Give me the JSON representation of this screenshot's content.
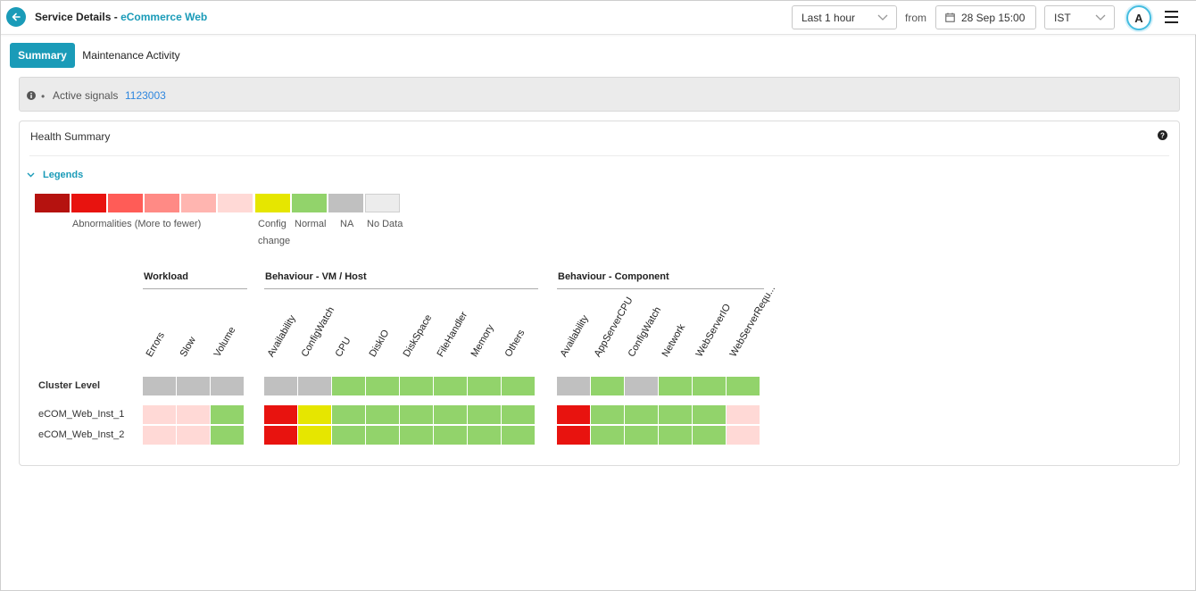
{
  "header": {
    "title_prefix": "Service Details - ",
    "service_name": "eCommerce Web",
    "time_range": "Last 1 hour",
    "from_label": "from",
    "from_date": "28 Sep 15:00",
    "timezone": "IST",
    "user_initial": "A"
  },
  "tabs": [
    {
      "label": "Summary",
      "active": true
    },
    {
      "label": "Maintenance Activity",
      "active": false
    }
  ],
  "signals": {
    "label": "Active signals",
    "value": "1123003"
  },
  "health": {
    "title": "Health Summary",
    "legends_label": "Legends",
    "legend": {
      "abnormality_colors": [
        "#b5120f",
        "#e8130f",
        "#ff5c57",
        "#ff8a85",
        "#ffb5b0",
        "#ffd9d6"
      ],
      "abnormality_label": "Abnormalities (More to fewer)",
      "config": {
        "color": "#e6e600",
        "label_line1": "Config",
        "label_line2": "change"
      },
      "normal": {
        "color": "#92d36b",
        "label": "Normal"
      },
      "na": {
        "color": "#c0c0c0",
        "label": "NA"
      },
      "nodata": {
        "color": "#ececec",
        "label": "No Data"
      }
    },
    "groups": [
      {
        "title": "Workload",
        "columns": [
          "Errors",
          "Slow",
          "Volume"
        ]
      },
      {
        "title": "Behaviour - VM / Host",
        "columns": [
          "Availability",
          "ConfigWatch",
          "CPU",
          "DiskIO",
          "DiskSpace",
          "FileHandler",
          "Memory",
          "Others"
        ]
      },
      {
        "title": "Behaviour - Component",
        "columns": [
          "Availability",
          "AppServerCPU",
          "ConfigWatch",
          "Network",
          "WebServerIO",
          "WebServerRequ..."
        ]
      }
    ],
    "rows": [
      {
        "label": "Cluster Level",
        "bold": true,
        "cells": [
          [
            "na",
            "na",
            "na"
          ],
          [
            "na",
            "na",
            "normal",
            "normal",
            "normal",
            "normal",
            "normal",
            "normal"
          ],
          [
            "na",
            "normal",
            "na",
            "normal",
            "normal",
            "normal"
          ]
        ]
      },
      {
        "label": "eCOM_Web_Inst_1",
        "bold": false,
        "cells": [
          [
            "abn6",
            "abn6",
            "normal"
          ],
          [
            "abn2",
            "config",
            "normal",
            "normal",
            "normal",
            "normal",
            "normal",
            "normal"
          ],
          [
            "abn2",
            "normal",
            "normal",
            "normal",
            "normal",
            "abn6"
          ]
        ]
      },
      {
        "label": "eCOM_Web_Inst_2",
        "bold": false,
        "cells": [
          [
            "abn6",
            "abn6",
            "normal"
          ],
          [
            "abn2",
            "config",
            "normal",
            "normal",
            "normal",
            "normal",
            "normal",
            "normal"
          ],
          [
            "abn2",
            "normal",
            "normal",
            "normal",
            "normal",
            "abn6"
          ]
        ]
      }
    ],
    "status_colors": {
      "abn1": "#b5120f",
      "abn2": "#e8130f",
      "abn3": "#ff5c57",
      "abn4": "#ff8a85",
      "abn5": "#ffb5b0",
      "abn6": "#ffd9d6",
      "config": "#e6e600",
      "normal": "#92d36b",
      "na": "#c0c0c0",
      "nodata": "#ececec"
    }
  }
}
